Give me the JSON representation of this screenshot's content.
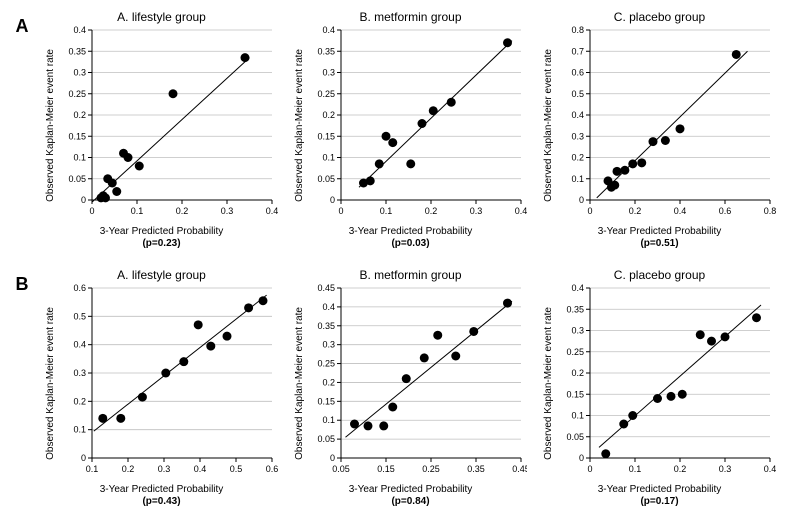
{
  "figure": {
    "background_color": "#ffffff",
    "grid_color": "#bfbfbf",
    "axis_color": "#000000",
    "marker_color": "#000000",
    "line_color": "#000000",
    "title_fontsize": 12,
    "label_fontsize": 10,
    "tick_fontsize": 9,
    "marker_radius": 4.5,
    "line_width": 1,
    "rows": [
      {
        "row_label": "A",
        "panels": [
          {
            "title": "A. lifestyle group",
            "ylabel": "Observed Kaplan-Meier event rate",
            "xlabel": "3-Year Predicted Probability",
            "pval": "(p=0.23)",
            "xlim": [
              0,
              0.4
            ],
            "xtick_step": 0.1,
            "ylim": [
              0,
              0.4
            ],
            "ytick_step": 0.05,
            "points": [
              [
                0.02,
                0.005
              ],
              [
                0.025,
                0.01
              ],
              [
                0.03,
                0.005
              ],
              [
                0.035,
                0.05
              ],
              [
                0.045,
                0.04
              ],
              [
                0.055,
                0.02
              ],
              [
                0.07,
                0.11
              ],
              [
                0.08,
                0.1
              ],
              [
                0.105,
                0.08
              ],
              [
                0.18,
                0.25
              ],
              [
                0.34,
                0.335
              ]
            ],
            "fit": {
              "x1": 0.0,
              "y1": -0.005,
              "x2": 0.35,
              "y2": 0.335
            }
          },
          {
            "title": "B. metformin group",
            "ylabel": "Observed Kaplan-Meier event rate",
            "xlabel": "3-Year Predicted Probability",
            "pval": "(p=0.03)",
            "xlim": [
              0,
              0.4
            ],
            "xtick_step": 0.1,
            "ylim": [
              0,
              0.4
            ],
            "ytick_step": 0.05,
            "points": [
              [
                0.05,
                0.04
              ],
              [
                0.065,
                0.045
              ],
              [
                0.085,
                0.085
              ],
              [
                0.1,
                0.15
              ],
              [
                0.115,
                0.135
              ],
              [
                0.155,
                0.085
              ],
              [
                0.18,
                0.18
              ],
              [
                0.205,
                0.21
              ],
              [
                0.245,
                0.23
              ],
              [
                0.37,
                0.37
              ]
            ],
            "fit": {
              "x1": 0.04,
              "y1": 0.03,
              "x2": 0.38,
              "y2": 0.375
            }
          },
          {
            "title": "C. placebo group",
            "ylabel": "Observed Kaplan-Meier event rate",
            "xlabel": "3-Year Predicted Probability",
            "pval": "(p=0.51)",
            "xlim": [
              0,
              0.8
            ],
            "xtick_step": 0.2,
            "ylim": [
              0,
              0.8
            ],
            "ytick_step": 0.1,
            "points": [
              [
                0.08,
                0.09
              ],
              [
                0.095,
                0.06
              ],
              [
                0.11,
                0.07
              ],
              [
                0.12,
                0.135
              ],
              [
                0.155,
                0.14
              ],
              [
                0.19,
                0.17
              ],
              [
                0.23,
                0.175
              ],
              [
                0.28,
                0.275
              ],
              [
                0.335,
                0.28
              ],
              [
                0.4,
                0.335
              ],
              [
                0.65,
                0.685
              ]
            ],
            "fit": {
              "x1": 0.03,
              "y1": 0.01,
              "x2": 0.7,
              "y2": 0.7
            }
          }
        ]
      },
      {
        "row_label": "B",
        "panels": [
          {
            "title": "A. lifestyle group",
            "ylabel": "Observed Kaplan-Meier event rate",
            "xlabel": "3-Year Predicted Probability",
            "pval": "(p=0.43)",
            "xlim": [
              0.1,
              0.6
            ],
            "xtick_step": 0.1,
            "ylim": [
              0,
              0.6
            ],
            "ytick_step": 0.1,
            "points": [
              [
                0.13,
                0.14
              ],
              [
                0.18,
                0.14
              ],
              [
                0.24,
                0.215
              ],
              [
                0.305,
                0.3
              ],
              [
                0.355,
                0.34
              ],
              [
                0.395,
                0.47
              ],
              [
                0.43,
                0.395
              ],
              [
                0.475,
                0.43
              ],
              [
                0.535,
                0.53
              ],
              [
                0.575,
                0.555
              ]
            ],
            "fit": {
              "x1": 0.105,
              "y1": 0.095,
              "x2": 0.585,
              "y2": 0.575
            }
          },
          {
            "title": "B. metformin group",
            "ylabel": "Observed Kaplan-Meier event rate",
            "xlabel": "3-Year Predicted Probability",
            "pval": "(p=0.84)",
            "xlim": [
              0.05,
              0.45
            ],
            "xtick_step": 0.1,
            "ylim": [
              0,
              0.45
            ],
            "ytick_step": 0.05,
            "points": [
              [
                0.08,
                0.09
              ],
              [
                0.11,
                0.085
              ],
              [
                0.145,
                0.085
              ],
              [
                0.165,
                0.135
              ],
              [
                0.195,
                0.21
              ],
              [
                0.235,
                0.265
              ],
              [
                0.265,
                0.325
              ],
              [
                0.305,
                0.27
              ],
              [
                0.345,
                0.335
              ],
              [
                0.42,
                0.41
              ]
            ],
            "fit": {
              "x1": 0.06,
              "y1": 0.055,
              "x2": 0.43,
              "y2": 0.415
            }
          },
          {
            "title": "C. placebo group",
            "ylabel": "Observed Kaplan-Meier event rate",
            "xlabel": "3-Year Predicted Probability",
            "pval": "(p=0.17)",
            "xlim": [
              0,
              0.4
            ],
            "xtick_step": 0.1,
            "ylim": [
              0,
              0.4
            ],
            "ytick_step": 0.05,
            "points": [
              [
                0.035,
                0.01
              ],
              [
                0.075,
                0.08
              ],
              [
                0.095,
                0.1
              ],
              [
                0.15,
                0.14
              ],
              [
                0.18,
                0.145
              ],
              [
                0.205,
                0.15
              ],
              [
                0.245,
                0.29
              ],
              [
                0.27,
                0.275
              ],
              [
                0.3,
                0.285
              ],
              [
                0.37,
                0.33
              ]
            ],
            "fit": {
              "x1": 0.02,
              "y1": 0.025,
              "x2": 0.38,
              "y2": 0.36
            }
          }
        ]
      }
    ]
  }
}
